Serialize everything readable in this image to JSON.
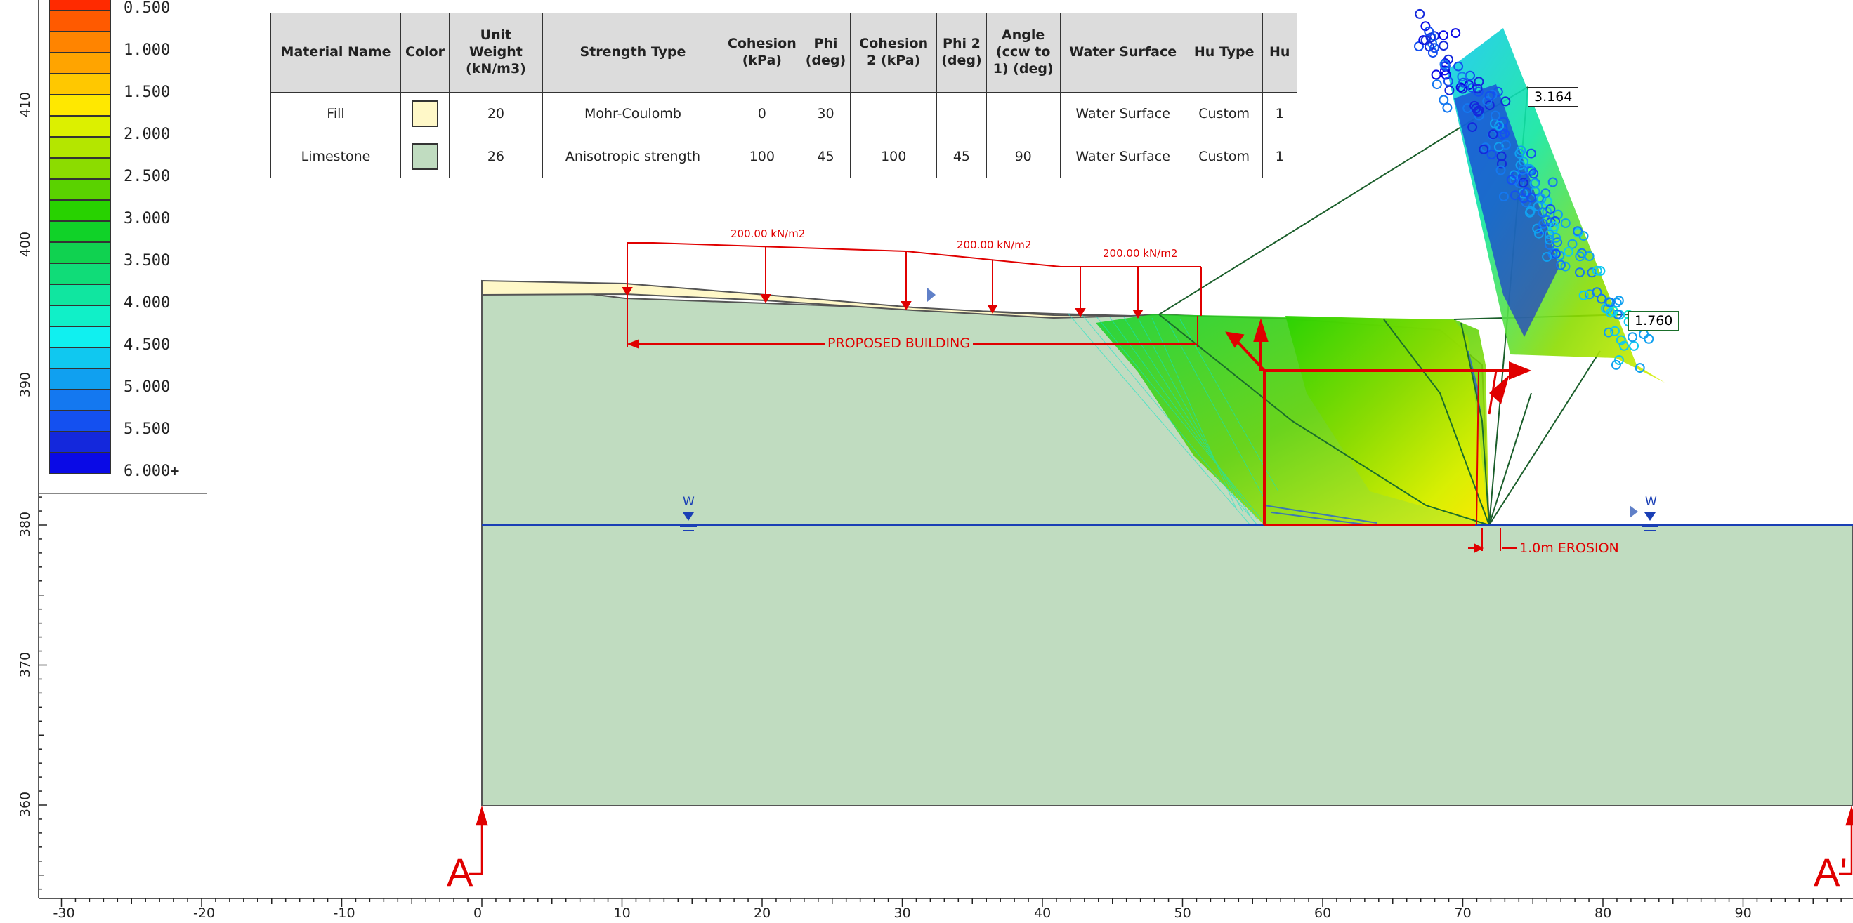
{
  "legend": {
    "items": [
      {
        "label": "0.500",
        "top_color": "#ff2a00",
        "bottom_color": "#ff5a00"
      },
      {
        "label": "1.000",
        "top_color": "#ff8400",
        "bottom_color": "#ffa400"
      },
      {
        "label": "1.500",
        "top_color": "#ffc800",
        "bottom_color": "#ffe800"
      },
      {
        "label": "2.000",
        "top_color": "#dcf000",
        "bottom_color": "#b4e600"
      },
      {
        "label": "2.500",
        "top_color": "#8cdc00",
        "bottom_color": "#5ad200"
      },
      {
        "label": "3.000",
        "top_color": "#28d200",
        "bottom_color": "#10d228"
      },
      {
        "label": "3.500",
        "top_color": "#10d250",
        "bottom_color": "#10dc78"
      },
      {
        "label": "4.000",
        "top_color": "#10e6a0",
        "bottom_color": "#10f0c8"
      },
      {
        "label": "4.500",
        "top_color": "#10f0f0",
        "bottom_color": "#10c8f0"
      },
      {
        "label": "5.000",
        "top_color": "#10a0f0",
        "bottom_color": "#1478f0"
      },
      {
        "label": "5.500",
        "top_color": "#1450f0",
        "bottom_color": "#1428dc"
      },
      {
        "label": "6.000+",
        "top_color": "#0a0ae6",
        "bottom_color": "#0a0ae6"
      }
    ]
  },
  "material_table": {
    "headers": [
      "Material Name",
      "Color",
      "Unit Weight (kN/m3)",
      "Strength Type",
      "Cohesion (kPa)",
      "Phi (deg)",
      "Cohesion 2 (kPa)",
      "Phi 2 (deg)",
      "Angle (ccw to 1) (deg)",
      "Water Surface",
      "Hu Type",
      "Hu"
    ],
    "rows": [
      {
        "name": "Fill",
        "color": "#fff8c8",
        "unit_weight": "20",
        "strength_type": "Mohr-Coulomb",
        "cohesion": "0",
        "phi": "30",
        "cohesion2": "",
        "phi2": "",
        "angle": "",
        "water_surface": "Water Surface",
        "hu_type": "Custom",
        "hu": "1"
      },
      {
        "name": "Limestone",
        "color": "#c0dcc0",
        "unit_weight": "26",
        "strength_type": "Anisotropic strength",
        "cohesion": "100",
        "phi": "45",
        "cohesion2": "100",
        "phi2": "45",
        "angle": "90",
        "water_surface": "Water Surface",
        "hu_type": "Custom",
        "hu": "1"
      }
    ]
  },
  "model": {
    "fill_color": "#fff8c8",
    "limestone_color": "#c0dcc0",
    "water_color": "#1a3fb5",
    "load_color": "#e00000",
    "loads": [
      "200.00 kN/m2",
      "200.00 kN/m2",
      "200.00 kN/m2"
    ],
    "building_label": "PROPOSED BUILDING",
    "erosion_label": "1.0m EROSION",
    "water_marker": "W",
    "fs_labels": [
      "3.164",
      "1.760"
    ],
    "section_start": "A",
    "section_end": "A'"
  },
  "axes": {
    "x_ticks": [
      "-30",
      "-20",
      "-10",
      "0",
      "10",
      "20",
      "30",
      "40",
      "50",
      "60",
      "70",
      "80",
      "90"
    ],
    "y_ticks": [
      "410",
      "400",
      "390",
      "380",
      "370",
      "360"
    ]
  }
}
